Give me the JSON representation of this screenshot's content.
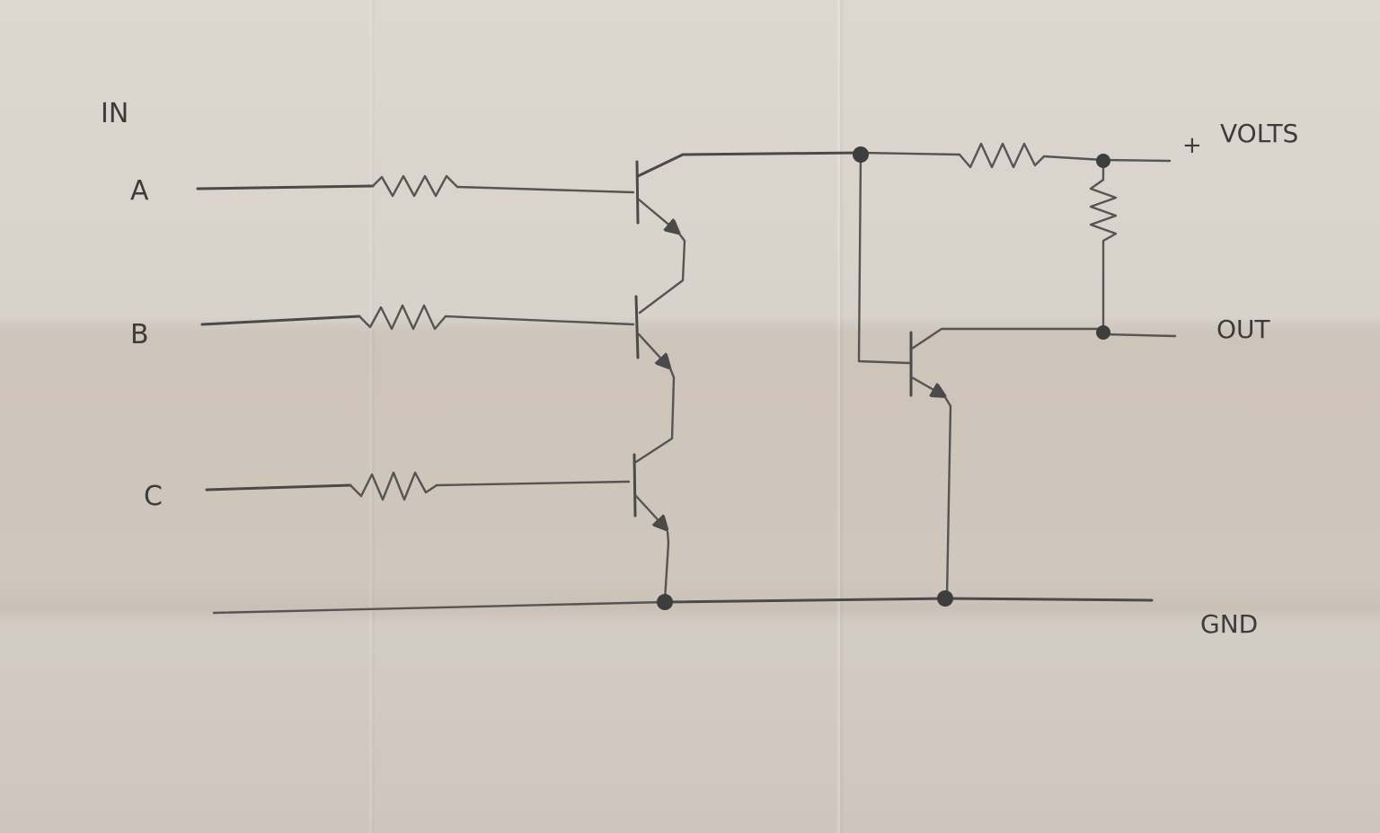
{
  "labels": {
    "input_group": "IN",
    "input_a": "A",
    "input_b": "B",
    "input_c": "C",
    "plus": "+",
    "supply": "VOLTS",
    "output": "OUT",
    "ground": "GND"
  },
  "colors": {
    "paper": "#d7d0c8",
    "pencil": "#4a4a4a"
  }
}
